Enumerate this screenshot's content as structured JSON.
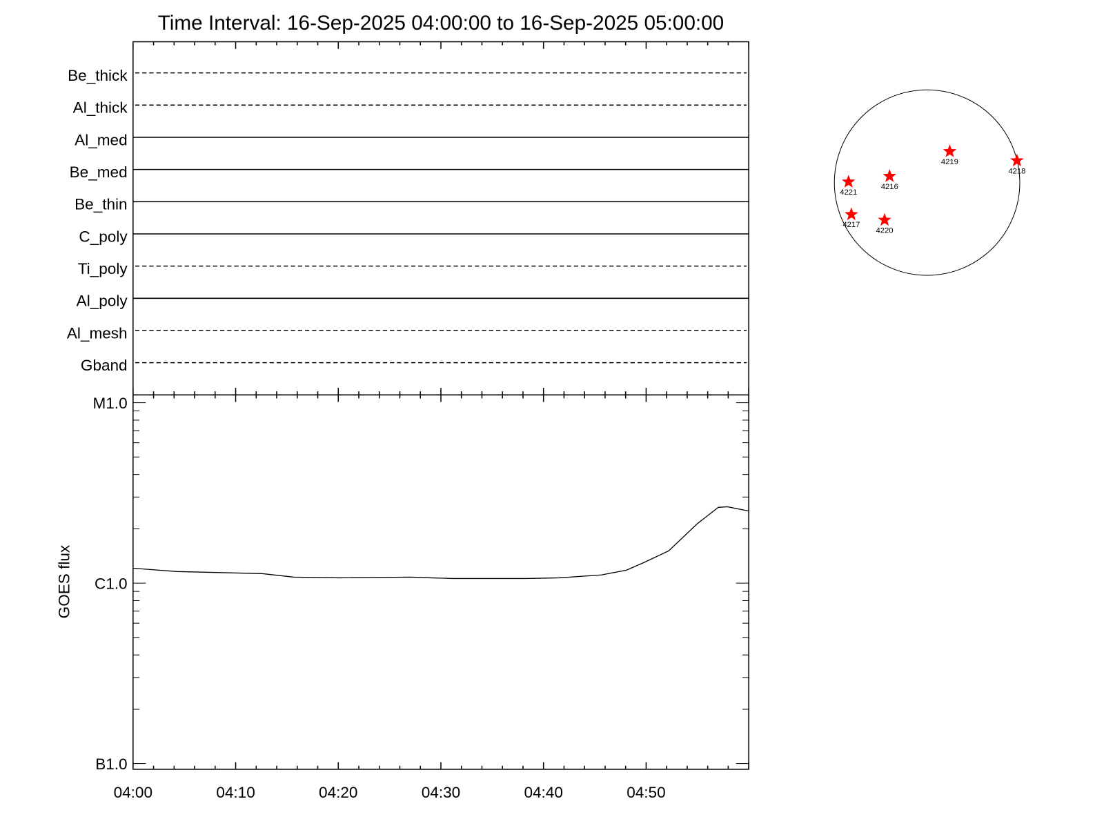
{
  "chart_data": [
    {
      "type": "table",
      "title": "Time Interval: 16-Sep-2025 04:00:00 to 16-Sep-2025 05:00:00",
      "channels": [
        {
          "name": "Be_thick",
          "style": "dashed"
        },
        {
          "name": "Al_thick",
          "style": "dashed"
        },
        {
          "name": "Al_med",
          "style": "solid"
        },
        {
          "name": "Be_med",
          "style": "solid"
        },
        {
          "name": "Be_thin",
          "style": "solid"
        },
        {
          "name": "C_poly",
          "style": "solid"
        },
        {
          "name": "Ti_poly",
          "style": "dashed"
        },
        {
          "name": "Al_poly",
          "style": "solid"
        },
        {
          "name": "Al_mesh",
          "style": "dashed"
        },
        {
          "name": "Gband",
          "style": "dashed"
        }
      ]
    },
    {
      "type": "line",
      "ylabel": "GOES flux",
      "xlabel": "",
      "yscale": "log",
      "ylim": [
        9.3e-08,
        1.1e-05
      ],
      "xlim": [
        "04:00",
        "05:00"
      ],
      "xticks": [
        "04:00",
        "04:10",
        "04:20",
        "04:30",
        "04:40",
        "04:50"
      ],
      "yticks": [
        {
          "label": "M1.0",
          "value": 1e-05
        },
        {
          "label": "C1.0",
          "value": 1e-06
        },
        {
          "label": "B1.0",
          "value": 1e-07
        }
      ],
      "series": [
        {
          "color": "#000000",
          "x": [
            "04:00:00",
            "04:04:17",
            "04:12:33",
            "04:15:40",
            "04:20:08",
            "04:27:02",
            "04:31:10",
            "04:38:04",
            "04:41:31",
            "04:45:39",
            "04:48:04",
            "04:49:47",
            "04:52:12",
            "04:54:58",
            "04:57:02",
            "04:57:56",
            "05:00:00"
          ],
          "y": [
            1.21e-06,
            1.16e-06,
            1.13e-06,
            1.08e-06,
            1.07e-06,
            1.08e-06,
            1.06e-06,
            1.06e-06,
            1.07e-06,
            1.11e-06,
            1.18e-06,
            1.3e-06,
            1.51e-06,
            2.13e-06,
            2.63e-06,
            2.65e-06,
            2.51e-06
          ]
        }
      ]
    }
  ],
  "solar_disk": {
    "marker_color": "#ff0000",
    "regions": [
      "4219",
      "4218",
      "4221",
      "4216",
      "4217",
      "4220"
    ]
  }
}
